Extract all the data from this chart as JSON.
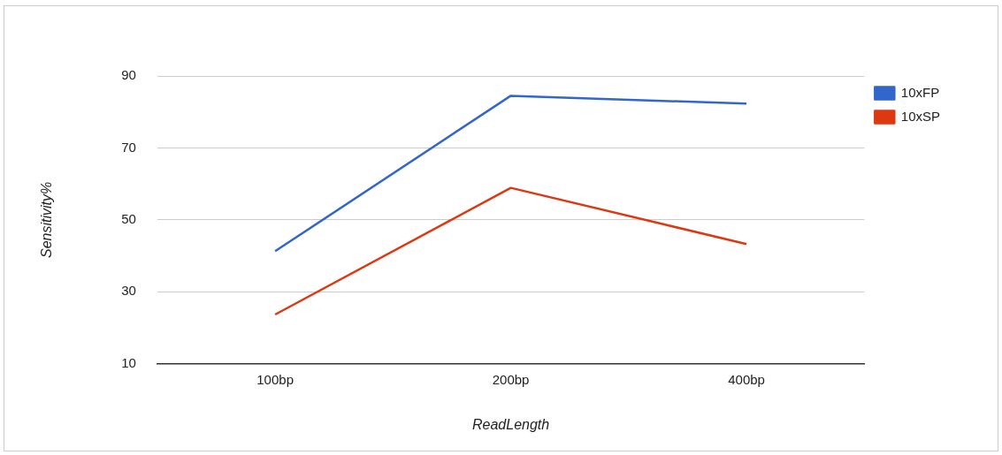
{
  "chart_data": {
    "type": "line",
    "xlabel": "ReadLength",
    "ylabel": "Sensitivity%",
    "categories": [
      "100bp",
      "200bp",
      "400bp"
    ],
    "series": [
      {
        "name": "10xFP",
        "color": "#3366cc",
        "values": [
          41.3,
          84.5,
          82.3
        ]
      },
      {
        "name": "10xSP",
        "color": "#dc3912",
        "values": [
          23.7,
          58.9,
          43.3
        ]
      }
    ],
    "ylim": [
      10,
      90
    ],
    "yticks": [
      10,
      30,
      50,
      70,
      90
    ],
    "grid": "y",
    "legend": "top right",
    "marker": "none",
    "line_style": "solid"
  }
}
